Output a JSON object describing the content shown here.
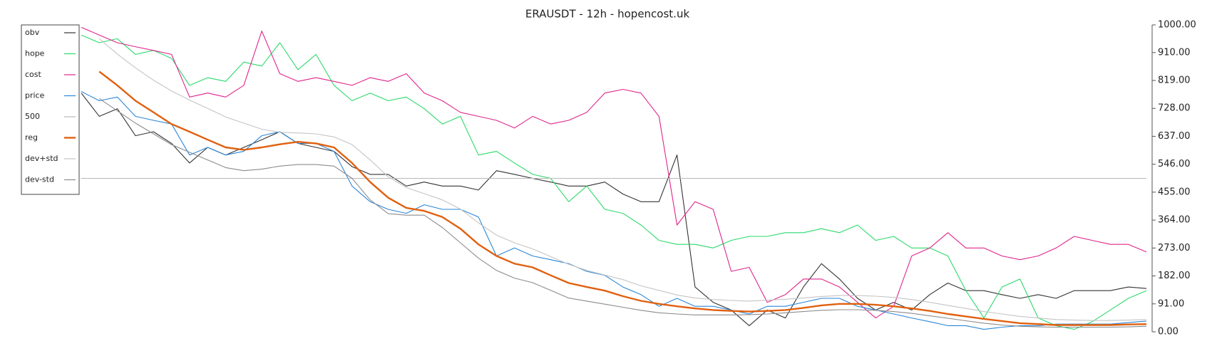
{
  "chart_data": {
    "type": "line",
    "title": "ERAUSDT - 12h - hopencost.uk",
    "ylim": [
      0,
      1000
    ],
    "yticks": [
      {
        "value": 0,
        "label": "0.00"
      },
      {
        "value": 91,
        "label": "91.00"
      },
      {
        "value": 182,
        "label": "182.00"
      },
      {
        "value": 273,
        "label": "273.00"
      },
      {
        "value": 364,
        "label": "364.00"
      },
      {
        "value": 455,
        "label": "455.00"
      },
      {
        "value": 546,
        "label": "546.00"
      },
      {
        "value": 637,
        "label": "637.00"
      },
      {
        "value": 728,
        "label": "728.00"
      },
      {
        "value": 819,
        "label": "819.00"
      },
      {
        "value": 910,
        "label": "910.00"
      },
      {
        "value": 1000,
        "label": "1000.00"
      }
    ],
    "y_axis_side": "right",
    "legend": "upper left",
    "series": [
      {
        "name": "obv",
        "color": "#333333",
        "values": [
          778,
          702,
          727,
          639,
          652,
          614,
          550,
          601,
          576,
          601,
          626,
          652,
          614,
          601,
          588,
          538,
          513,
          513,
          475,
          488,
          475,
          475,
          462,
          525,
          513,
          500,
          488,
          475,
          475,
          488,
          449,
          424,
          424,
          576,
          146,
          96,
          71,
          20,
          71,
          45,
          146,
          222,
          172,
          109,
          71,
          96,
          71,
          121,
          159,
          134,
          134,
          121,
          109,
          121,
          109,
          134,
          134,
          134,
          146,
          141
        ]
      },
      {
        "name": "hope",
        "color": "#2bd96b",
        "values": [
          967,
          942,
          955,
          904,
          917,
          891,
          803,
          828,
          816,
          879,
          866,
          942,
          854,
          904,
          803,
          753,
          778,
          753,
          765,
          727,
          677,
          702,
          576,
          588,
          550,
          513,
          500,
          424,
          475,
          399,
          386,
          348,
          298,
          285,
          285,
          273,
          298,
          311,
          311,
          323,
          323,
          336,
          323,
          348,
          298,
          311,
          273,
          273,
          247,
          134,
          45,
          146,
          172,
          45,
          20,
          8,
          33,
          71,
          109,
          134
        ]
      },
      {
        "name": "cost",
        "color": "#e0258c",
        "values": [
          992,
          967,
          942,
          929,
          917,
          904,
          765,
          778,
          765,
          803,
          980,
          841,
          816,
          828,
          816,
          803,
          828,
          816,
          841,
          778,
          753,
          715,
          702,
          689,
          664,
          702,
          677,
          689,
          715,
          778,
          790,
          778,
          702,
          348,
          424,
          399,
          197,
          210,
          96,
          121,
          172,
          172,
          146,
          96,
          45,
          83,
          247,
          273,
          323,
          273,
          273,
          247,
          235,
          247,
          273,
          311,
          298,
          285,
          285,
          260
        ]
      },
      {
        "name": "price",
        "color": "#2a86d8",
        "values": [
          783,
          753,
          765,
          702,
          689,
          677,
          576,
          601,
          576,
          588,
          639,
          652,
          614,
          614,
          588,
          475,
          424,
          399,
          386,
          414,
          399,
          399,
          374,
          247,
          273,
          247,
          235,
          222,
          197,
          184,
          146,
          121,
          83,
          109,
          83,
          83,
          71,
          58,
          83,
          83,
          96,
          109,
          109,
          83,
          71,
          58,
          45,
          33,
          20,
          20,
          8,
          15,
          20,
          20,
          25,
          25,
          25,
          25,
          30,
          35
        ]
      },
      {
        "name": "500",
        "color": "#b8b8b8",
        "values": [
          500,
          500,
          500,
          500,
          500,
          500,
          500,
          500,
          500,
          500,
          500,
          500,
          500,
          500,
          500,
          500,
          500,
          500,
          500,
          500,
          500,
          500,
          500,
          500,
          500,
          500,
          500,
          500,
          500,
          500,
          500,
          500,
          500,
          500,
          500,
          500,
          500,
          500,
          500,
          500,
          500,
          500,
          500,
          500,
          500,
          500,
          500,
          500,
          500,
          500,
          500,
          500,
          500,
          500,
          500,
          500,
          500,
          500,
          500,
          500
        ]
      },
      {
        "name": "reg",
        "color": "#e0600f",
        "values": [
          null,
          848,
          803,
          753,
          715,
          677,
          652,
          626,
          601,
          593,
          601,
          611,
          619,
          614,
          601,
          550,
          488,
          437,
          404,
          394,
          374,
          336,
          285,
          247,
          222,
          210,
          184,
          159,
          146,
          134,
          116,
          101,
          91,
          83,
          76,
          71,
          68,
          66,
          68,
          71,
          78,
          86,
          91,
          91,
          88,
          83,
          76,
          68,
          58,
          50,
          42,
          35,
          28,
          25,
          22,
          22,
          22,
          22,
          24,
          25
        ]
      },
      {
        "name": "dev+std",
        "color": "#c4c4c4",
        "values": [
          null,
          955,
          905,
          860,
          820,
          785,
          755,
          728,
          700,
          680,
          660,
          650,
          648,
          645,
          635,
          610,
          560,
          505,
          470,
          450,
          430,
          400,
          355,
          315,
          290,
          270,
          245,
          220,
          200,
          185,
          170,
          150,
          135,
          120,
          110,
          105,
          102,
          100,
          103,
          106,
          110,
          115,
          118,
          118,
          116,
          112,
          105,
          96,
          86,
          76,
          66,
          58,
          50,
          45,
          40,
          38,
          37,
          37,
          38,
          40
        ]
      },
      {
        "name": "dev-std",
        "color": "#8c8c8c",
        "values": [
          null,
          760,
          720,
          680,
          645,
          610,
          585,
          560,
          535,
          525,
          530,
          540,
          545,
          545,
          540,
          500,
          430,
          385,
          380,
          380,
          340,
          290,
          240,
          200,
          175,
          160,
          135,
          110,
          100,
          90,
          80,
          70,
          62,
          58,
          55,
          55,
          55,
          56,
          58,
          62,
          66,
          70,
          72,
          72,
          70,
          66,
          60,
          52,
          44,
          36,
          28,
          22,
          18,
          16,
          15,
          15,
          15,
          15,
          16,
          18
        ]
      }
    ]
  }
}
